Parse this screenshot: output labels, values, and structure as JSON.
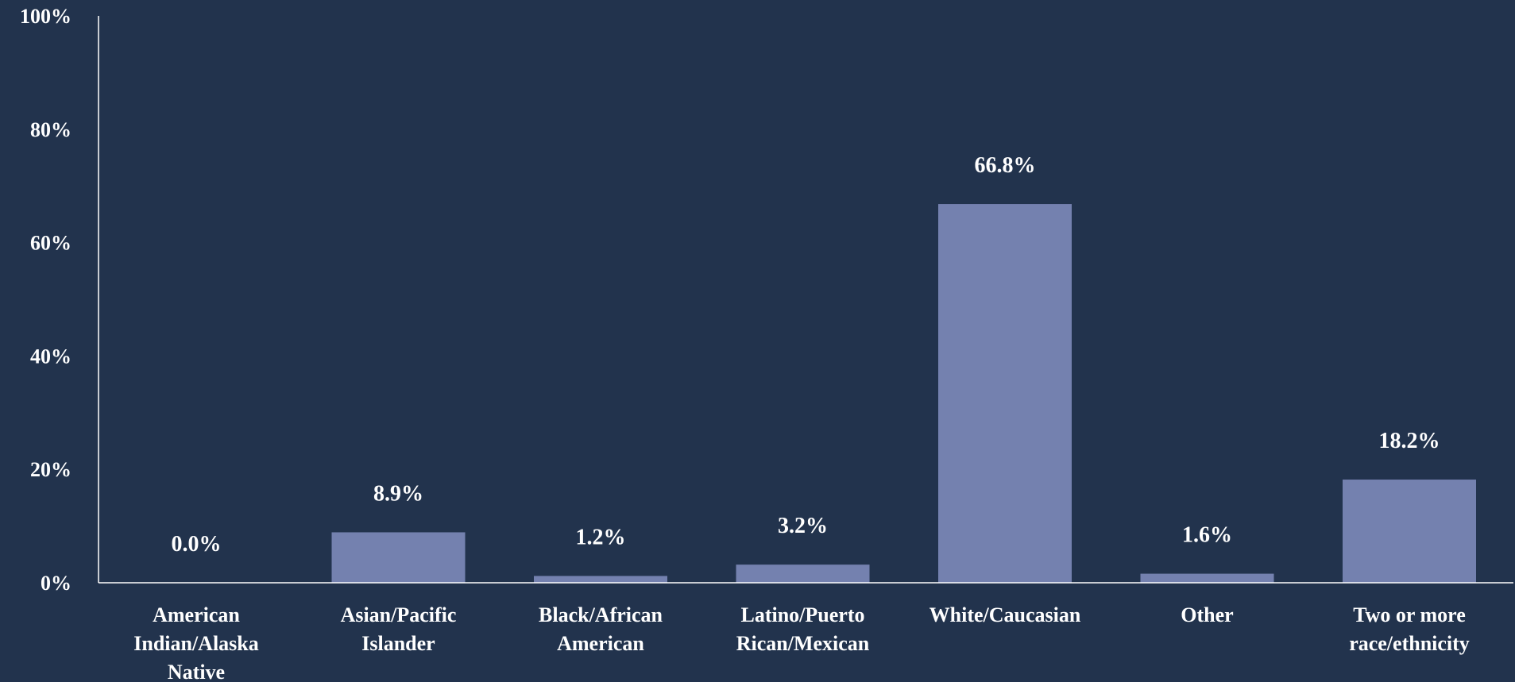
{
  "chart_data": {
    "type": "bar",
    "title": "",
    "xlabel": "",
    "ylabel": "",
    "categories": [
      [
        "American",
        "Indian/Alaska",
        "Native"
      ],
      [
        "Asian/Pacific",
        "Islander"
      ],
      [
        "Black/African",
        "American"
      ],
      [
        "Latino/Puerto",
        "Rican/Mexican"
      ],
      [
        "White/Caucasian"
      ],
      [
        "Other"
      ],
      [
        "Two or more",
        "race/ethnicity"
      ]
    ],
    "values": [
      0.0,
      8.9,
      1.2,
      3.2,
      66.8,
      1.6,
      18.2
    ],
    "data_labels": [
      "0.0%",
      "8.9%",
      "1.2%",
      "3.2%",
      "66.8%",
      "1.6%",
      "18.2%"
    ],
    "ylim": [
      0,
      100
    ],
    "yticks": [
      0,
      20,
      40,
      60,
      80,
      100
    ],
    "ytick_labels": [
      "0%",
      "20%",
      "40%",
      "60%",
      "80%",
      "100%"
    ],
    "grid": false,
    "legend": "none",
    "colors": {
      "background": "#22334d",
      "bar": "#7481af",
      "axis": "#ffffff",
      "text": "#ffffff"
    }
  }
}
